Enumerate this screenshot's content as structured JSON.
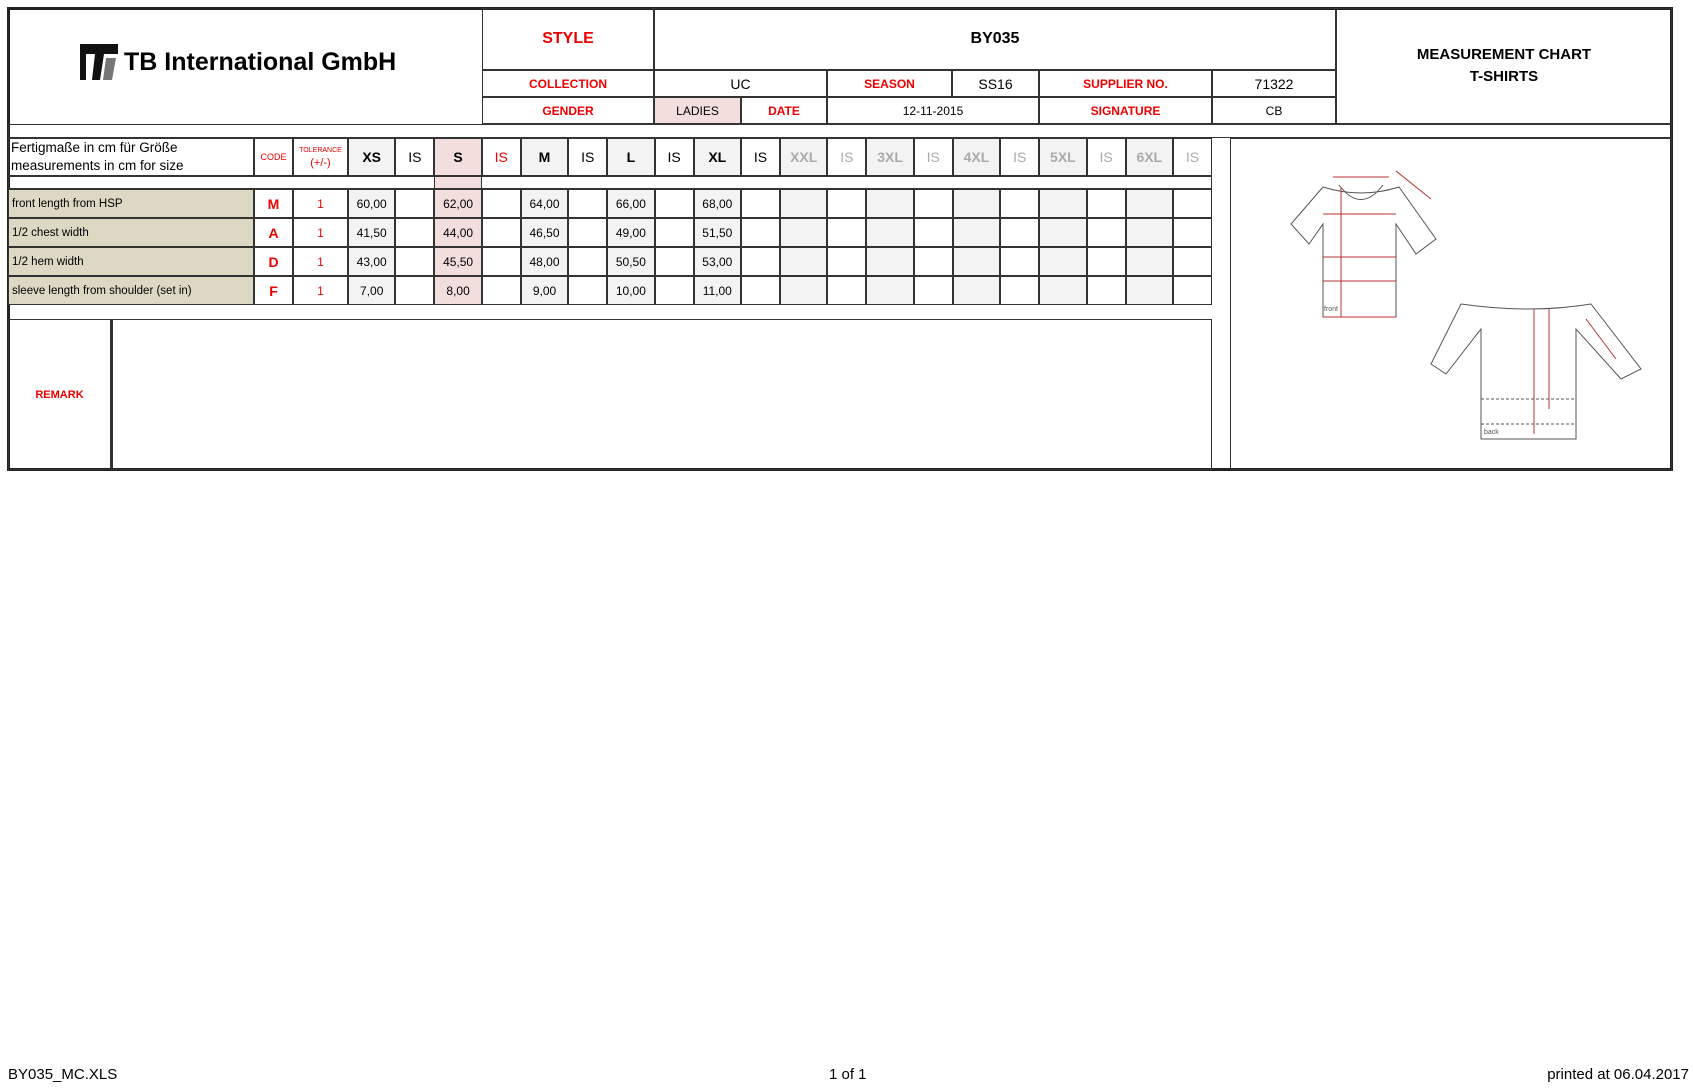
{
  "header": {
    "company": "TB International GmbH",
    "style_label": "STYLE",
    "style_value": "BY035",
    "collection_label": "COLLECTION",
    "collection_value": "UC",
    "season_label": "SEASON",
    "season_value": "SS16",
    "supplier_label": "SUPPLIER NO.",
    "supplier_value": "71322",
    "gender_label": "GENDER",
    "gender_value": "LADIES",
    "date_label": "DATE",
    "date_value": "12-11-2015",
    "signature_label": "SIGNATURE",
    "signature_value": "CB",
    "title_line1": "MEASUREMENT CHART",
    "title_line2": "T-SHIRTS"
  },
  "table": {
    "desc_de": "Fertigmaße in cm für Größe",
    "desc_en": "measurements in cm for size",
    "code_label": "CODE",
    "tolerance_label": "TOLERANCE",
    "tolerance_unit": "(+/-)",
    "sizes": [
      "XS",
      "IS",
      "S",
      "IS",
      "M",
      "IS",
      "L",
      "IS",
      "XL",
      "IS",
      "XXL",
      "IS",
      "3XL",
      "IS",
      "4XL",
      "IS",
      "5XL",
      "IS",
      "6XL",
      "IS"
    ],
    "rows": [
      {
        "label": "front length from HSP",
        "code": "M",
        "tolerance": "1",
        "values": [
          "60,00",
          "",
          "62,00",
          "",
          "64,00",
          "",
          "66,00",
          "",
          "68,00",
          "",
          "",
          "",
          "",
          "",
          "",
          "",
          "",
          "",
          "",
          ""
        ]
      },
      {
        "label": "1/2 chest width",
        "code": "A",
        "tolerance": "1",
        "values": [
          "41,50",
          "",
          "44,00",
          "",
          "46,50",
          "",
          "49,00",
          "",
          "51,50",
          "",
          "",
          "",
          "",
          "",
          "",
          "",
          "",
          "",
          "",
          ""
        ]
      },
      {
        "label": "1/2 hem width",
        "code": "D",
        "tolerance": "1",
        "values": [
          "43,00",
          "",
          "45,50",
          "",
          "48,00",
          "",
          "50,50",
          "",
          "53,00",
          "",
          "",
          "",
          "",
          "",
          "",
          "",
          "",
          "",
          "",
          ""
        ]
      },
      {
        "label": "sleeve length from shoulder (set in)",
        "code": "F",
        "tolerance": "1",
        "values": [
          "7,00",
          "",
          "8,00",
          "",
          "9,00",
          "",
          "10,00",
          "",
          "11,00",
          "",
          "",
          "",
          "",
          "",
          "",
          "",
          "",
          "",
          "",
          ""
        ]
      }
    ]
  },
  "remark_label": "REMARK",
  "sketch_labels": {
    "front": "front",
    "back": "back"
  },
  "footer": {
    "file": "BY035_MC.XLS",
    "page": "1 of 1",
    "printed": "printed at 06.04.2017"
  },
  "colors": {
    "accent": "#e00000",
    "label_bg": "#dcd8c3",
    "highlight": "#f3dede"
  }
}
